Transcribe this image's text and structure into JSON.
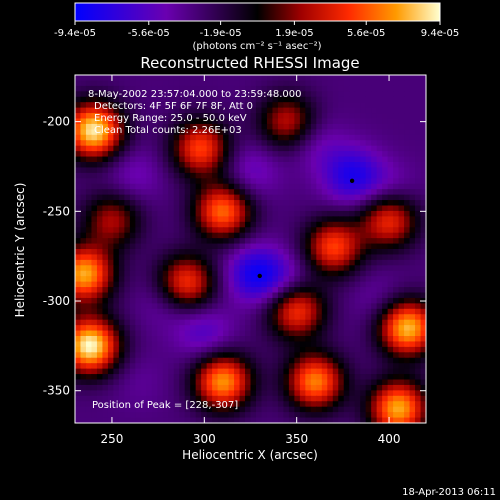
{
  "chart_data": {
    "type": "heatmap",
    "title": "Reconstructed RHESSI Image",
    "xlabel": "Heliocentric X (arcsec)",
    "ylabel": "Heliocentric Y (arcsec)",
    "xlim": [
      230,
      420
    ],
    "ylim": [
      -368,
      -174
    ],
    "x_ticks": [
      250,
      300,
      350,
      400
    ],
    "y_ticks": [
      -200,
      -250,
      -300,
      -350
    ],
    "colorbar": {
      "tick_labels": [
        "-9.4e-05",
        "-5.6e-05",
        "-1.9e-05",
        "1.9e-05",
        "5.6e-05",
        "9.4e-05"
      ],
      "tick_values": [
        -9.4e-05,
        -5.6e-05,
        -1.9e-05,
        1.9e-05,
        5.6e-05,
        9.4e-05
      ],
      "range": [
        -9.4e-05,
        9.4e-05
      ],
      "units_label": "(photons cm⁻² s⁻¹ asec⁻²)"
    },
    "info_lines": [
      "8-May-2002 23:57:04.000 to 23:59:48.000",
      "Detectors: 4F 5F 6F 7F 8F, Att 0",
      "Energy Range: 25.0 - 50.0 keV",
      "Clean    Total counts: 2.26E+03"
    ],
    "peak_label": "Position of Peak = [228,-307]",
    "peak_position": [
      228,
      -307
    ],
    "marked_points": [
      [
        330,
        -286
      ],
      [
        380,
        -233
      ]
    ],
    "features": [
      {
        "x": 240,
        "y": -205,
        "value": 9e-05
      },
      {
        "x": 235,
        "y": -285,
        "value": 7.5e-05
      },
      {
        "x": 238,
        "y": -325,
        "value": 9.4e-05
      },
      {
        "x": 298,
        "y": -215,
        "value": 5e-05
      },
      {
        "x": 310,
        "y": -250,
        "value": 6e-05
      },
      {
        "x": 290,
        "y": -290,
        "value": 5e-05
      },
      {
        "x": 310,
        "y": -345,
        "value": 7e-05
      },
      {
        "x": 360,
        "y": -345,
        "value": 6.5e-05
      },
      {
        "x": 350,
        "y": -305,
        "value": 5e-05
      },
      {
        "x": 370,
        "y": -270,
        "value": 5e-05
      },
      {
        "x": 400,
        "y": -255,
        "value": 4.5e-05
      },
      {
        "x": 410,
        "y": -315,
        "value": 8e-05
      },
      {
        "x": 405,
        "y": -360,
        "value": 7.5e-05
      },
      {
        "x": 345,
        "y": -200,
        "value": 3e-05
      },
      {
        "x": 250,
        "y": -255,
        "value": 2.5e-05
      },
      {
        "x": 262,
        "y": -230,
        "value": -5e-05
      },
      {
        "x": 325,
        "y": -228,
        "value": -5.5e-05
      },
      {
        "x": 380,
        "y": -230,
        "value": -8e-05
      },
      {
        "x": 360,
        "y": -212,
        "value": -5e-05
      },
      {
        "x": 400,
        "y": -238,
        "value": -5e-05
      },
      {
        "x": 328,
        "y": -285,
        "value": -8.5e-05
      },
      {
        "x": 345,
        "y": -290,
        "value": -5.5e-05
      },
      {
        "x": 280,
        "y": -300,
        "value": -5e-05
      },
      {
        "x": 300,
        "y": -318,
        "value": -6e-05
      },
      {
        "x": 395,
        "y": -300,
        "value": -4.5e-05
      },
      {
        "x": 265,
        "y": -345,
        "value": -4e-05
      },
      {
        "x": 335,
        "y": -318,
        "value": -3e-05
      },
      {
        "x": 295,
        "y": -195,
        "value": -3e-05
      }
    ]
  },
  "footer": {
    "timestamp": "18-Apr-2013 06:11"
  }
}
